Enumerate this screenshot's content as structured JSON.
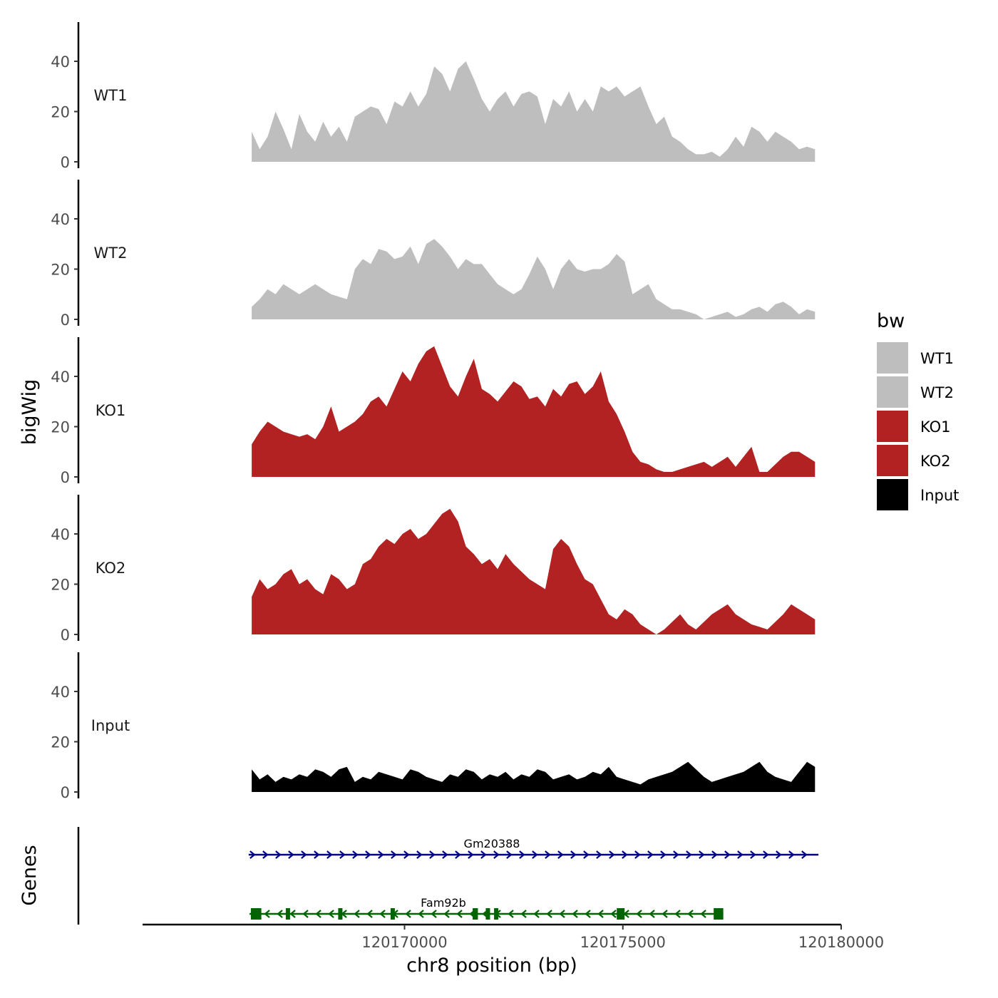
{
  "chart_data": {
    "type": "area",
    "xlabel": "chr8 position (bp)",
    "ylabel": "bigWig",
    "genes_label": "Genes",
    "xlim": [
      120164000,
      120180000
    ],
    "region": [
      120166500,
      120179400
    ],
    "x_ticks": [
      {
        "value": 120170000,
        "label": "120170000"
      },
      {
        "value": 120175000,
        "label": "120175000"
      },
      {
        "value": 120180000,
        "label": "120180000"
      }
    ],
    "ylim": [
      0,
      55
    ],
    "y_ticks": [
      {
        "value": 0,
        "label": "0"
      },
      {
        "value": 20,
        "label": "20"
      },
      {
        "value": 40,
        "label": "40"
      }
    ],
    "series": [
      {
        "name": "WT1",
        "color": "#bebebe",
        "values": [
          12,
          5,
          10,
          20,
          13,
          5,
          19,
          12,
          8,
          16,
          10,
          14,
          8,
          18,
          20,
          22,
          21,
          15,
          24,
          22,
          28,
          22,
          27,
          38,
          35,
          28,
          37,
          40,
          33,
          25,
          20,
          25,
          28,
          22,
          27,
          28,
          26,
          15,
          25,
          22,
          28,
          20,
          25,
          20,
          30,
          28,
          30,
          26,
          28,
          30,
          22,
          15,
          18,
          10,
          8,
          5,
          3,
          3,
          4,
          2,
          5,
          10,
          6,
          14,
          12,
          8,
          12,
          10,
          8,
          5,
          6,
          5
        ]
      },
      {
        "name": "WT2",
        "color": "#bebebe",
        "values": [
          5,
          8,
          12,
          10,
          14,
          12,
          10,
          12,
          14,
          12,
          10,
          9,
          8,
          20,
          24,
          22,
          28,
          27,
          24,
          25,
          29,
          22,
          30,
          32,
          29,
          25,
          20,
          24,
          22,
          22,
          18,
          14,
          12,
          10,
          12,
          18,
          25,
          20,
          12,
          20,
          24,
          20,
          19,
          20,
          20,
          22,
          26,
          23,
          10,
          12,
          14,
          8,
          6,
          4,
          4,
          3,
          2,
          0,
          1,
          2,
          3,
          1,
          2,
          4,
          5,
          3,
          6,
          7,
          5,
          2,
          4,
          3
        ]
      },
      {
        "name": "KO1",
        "color": "#b22222",
        "values": [
          13,
          18,
          22,
          20,
          18,
          17,
          16,
          17,
          15,
          20,
          28,
          18,
          20,
          22,
          25,
          30,
          32,
          28,
          35,
          42,
          38,
          45,
          50,
          52,
          44,
          36,
          32,
          40,
          47,
          35,
          33,
          30,
          34,
          38,
          36,
          31,
          32,
          28,
          35,
          32,
          37,
          38,
          33,
          36,
          42,
          30,
          25,
          18,
          10,
          6,
          5,
          3,
          2,
          2,
          3,
          4,
          5,
          6,
          4,
          6,
          8,
          4,
          8,
          12,
          2,
          2,
          5,
          8,
          10,
          10,
          8,
          6
        ]
      },
      {
        "name": "KO2",
        "color": "#b22222",
        "values": [
          15,
          22,
          18,
          20,
          24,
          26,
          20,
          22,
          18,
          16,
          24,
          22,
          18,
          20,
          28,
          30,
          35,
          38,
          36,
          40,
          42,
          38,
          40,
          44,
          48,
          50,
          45,
          35,
          32,
          28,
          30,
          26,
          32,
          28,
          25,
          22,
          20,
          18,
          34,
          38,
          35,
          28,
          22,
          20,
          14,
          8,
          6,
          10,
          8,
          4,
          2,
          0,
          2,
          5,
          8,
          4,
          2,
          5,
          8,
          10,
          12,
          8,
          6,
          4,
          3,
          2,
          5,
          8,
          12,
          10,
          8,
          6
        ]
      },
      {
        "name": "Input",
        "color": "#000000",
        "values": [
          9,
          5,
          7,
          4,
          6,
          5,
          7,
          6,
          9,
          8,
          6,
          9,
          10,
          4,
          6,
          5,
          8,
          7,
          6,
          5,
          9,
          8,
          6,
          5,
          4,
          7,
          6,
          9,
          8,
          5,
          7,
          6,
          8,
          5,
          7,
          6,
          9,
          8,
          5,
          6,
          7,
          5,
          6,
          8,
          7,
          10,
          6,
          5,
          4,
          3,
          5,
          6,
          7,
          8,
          10,
          12,
          9,
          6,
          4,
          5,
          6,
          7,
          8,
          10,
          12,
          8,
          6,
          5,
          4,
          8,
          12,
          10
        ]
      }
    ],
    "legend": {
      "title": "bw",
      "position": "right",
      "entries": [
        {
          "label": "WT1",
          "color": "#bebebe"
        },
        {
          "label": "WT2",
          "color": "#bebebe"
        },
        {
          "label": "KO1",
          "color": "#b22222"
        },
        {
          "label": "KO2",
          "color": "#b22222"
        },
        {
          "label": "Input",
          "color": "#000000"
        }
      ]
    },
    "genes": [
      {
        "name": "Gm20388",
        "strand": "+",
        "color": "#00008b",
        "start": 120166430,
        "end": 120179480,
        "exons": []
      },
      {
        "name": "Fam92b",
        "strand": "-",
        "color": "#006400",
        "start": 120166450,
        "end": 120177300,
        "exons": [
          [
            120166480,
            120166720
          ],
          [
            120167280,
            120167340
          ],
          [
            120168480,
            120168550
          ],
          [
            120169680,
            120169760
          ],
          [
            120171560,
            120171680
          ],
          [
            120171860,
            120171940
          ],
          [
            120172050,
            120172100
          ],
          [
            120174860,
            120175040
          ],
          [
            120177080,
            120177300
          ]
        ]
      }
    ]
  }
}
